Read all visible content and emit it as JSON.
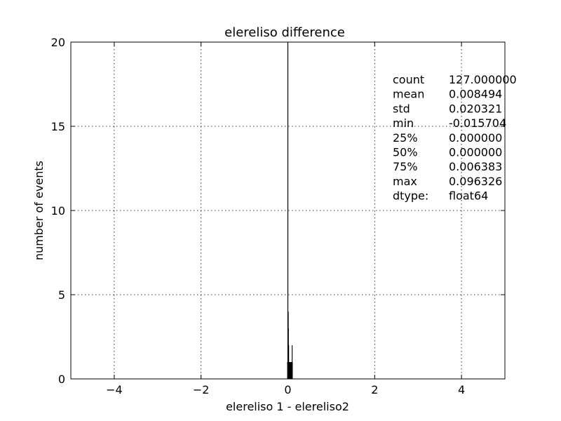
{
  "chart_data": {
    "type": "bar",
    "title": "elereliso difference",
    "xlabel": "elereliso 1 - elereliso2",
    "ylabel": "number of events",
    "xlim": [
      -5,
      5
    ],
    "ylim": [
      0,
      20
    ],
    "xticks": [
      -4,
      -2,
      0,
      2,
      4
    ],
    "yticks": [
      0,
      5,
      10,
      15,
      20
    ],
    "grid": true,
    "grid_style": "dotted",
    "bar_color": "#000000",
    "vline_x": 0,
    "bins": [
      {
        "x": -0.015,
        "count": 1
      },
      {
        "x": -0.012,
        "count": 1
      },
      {
        "x": -0.008,
        "count": 1
      },
      {
        "x": -0.005,
        "count": 1
      },
      {
        "x": -0.002,
        "count": 1
      },
      {
        "x": 0.0,
        "count": 4
      },
      {
        "x": 0.003,
        "count": 3
      },
      {
        "x": 0.006,
        "count": 2
      },
      {
        "x": 0.01,
        "count": 2
      },
      {
        "x": 0.014,
        "count": 1
      },
      {
        "x": 0.018,
        "count": 1
      },
      {
        "x": 0.022,
        "count": 1
      },
      {
        "x": 0.026,
        "count": 1
      },
      {
        "x": 0.03,
        "count": 1
      },
      {
        "x": 0.034,
        "count": 1
      },
      {
        "x": 0.038,
        "count": 1
      },
      {
        "x": 0.042,
        "count": 1
      },
      {
        "x": 0.046,
        "count": 1
      },
      {
        "x": 0.05,
        "count": 1
      },
      {
        "x": 0.054,
        "count": 1
      },
      {
        "x": 0.058,
        "count": 1
      },
      {
        "x": 0.062,
        "count": 1
      },
      {
        "x": 0.066,
        "count": 1
      },
      {
        "x": 0.07,
        "count": 1
      },
      {
        "x": 0.074,
        "count": 1
      },
      {
        "x": 0.078,
        "count": 1
      },
      {
        "x": 0.082,
        "count": 1
      },
      {
        "x": 0.086,
        "count": 1
      },
      {
        "x": 0.09,
        "count": 2
      },
      {
        "x": 0.094,
        "count": 1
      }
    ],
    "stats": [
      {
        "label": "count",
        "value": "127.000000"
      },
      {
        "label": "mean",
        "value": "0.008494"
      },
      {
        "label": "std",
        "value": "0.020321"
      },
      {
        "label": "min",
        "value": "-0.015704"
      },
      {
        "label": "25%",
        "value": "0.000000"
      },
      {
        "label": "50%",
        "value": "0.000000"
      },
      {
        "label": "75%",
        "value": "0.006383"
      },
      {
        "label": "max",
        "value": "0.096326"
      },
      {
        "label": "dtype:",
        "value": " float64"
      }
    ]
  }
}
